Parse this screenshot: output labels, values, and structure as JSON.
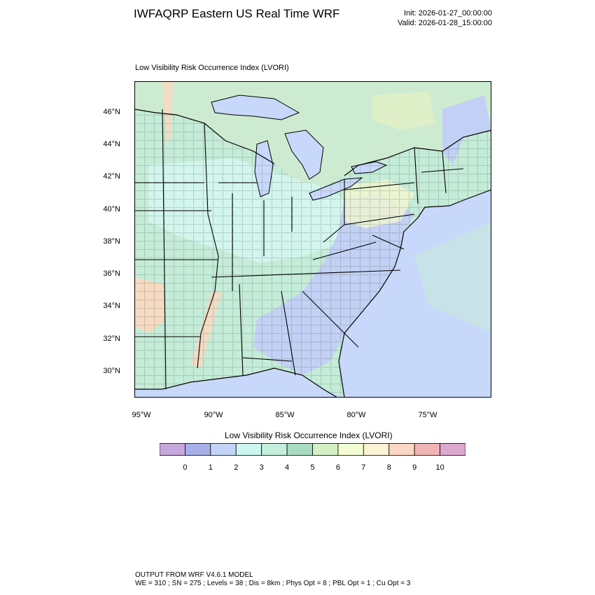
{
  "header": {
    "title": "IWFAQRP Eastern US Real Time WRF",
    "init": "Init: 2026-01-27_00:00:00",
    "valid": "Valid: 2026-01-28_15:00:00"
  },
  "plot": {
    "subtitle": "Low Visibility Risk Occurrence Index   (LVORI)",
    "lat_labels": [
      "46°N",
      "44°N",
      "42°N",
      "40°N",
      "38°N",
      "36°N",
      "34°N",
      "32°N",
      "30°N"
    ],
    "lon_labels": [
      "95°W",
      "90°W",
      "85°W",
      "80°W",
      "75°W"
    ]
  },
  "colorbar": {
    "title": "Low Visibility Risk Occurrence Index  (LVORI)",
    "levels": [
      "0",
      "1",
      "2",
      "3",
      "4",
      "5",
      "6",
      "7",
      "8",
      "9",
      "10"
    ],
    "colors": [
      "#c8a8dc",
      "#a8aee8",
      "#c4d4f8",
      "#cdf6f0",
      "#c4eedc",
      "#a8dcc0",
      "#d4f0c4",
      "#f4fcd4",
      "#fcf2d4",
      "#fcd6c4",
      "#f0b4b4",
      "#dca8d0"
    ]
  },
  "map_colors": {
    "ocean": "#c8d8fa",
    "land_green": "#c4ecd8",
    "land_cyan": "#d4f6f0",
    "land_blue": "#c2d0f6",
    "land_yellow": "#f2f6d0",
    "land_orange": "#fcd8c0",
    "canada": "#cdebd0"
  },
  "footer": {
    "line1": "OUTPUT FROM WRF V4.6.1 MODEL",
    "line2": "WE = 310 ; SN = 275 ; Levels = 38 ; Dis = 8km ; Phys Opt = 8 ; PBL Opt = 1 ; Cu Opt = 3"
  }
}
